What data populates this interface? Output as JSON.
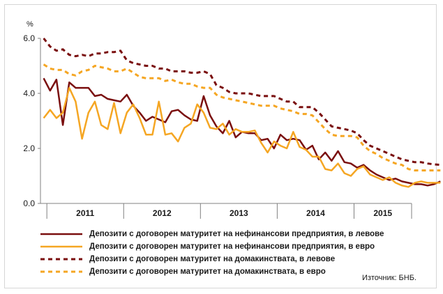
{
  "chart_data": {
    "type": "line",
    "unit_label": "%",
    "ylim": [
      0,
      6
    ],
    "y_ticks": [
      "0.0",
      "2.0",
      "4.0",
      "6.0"
    ],
    "x_start": "2010-12",
    "x_end": "2015-09",
    "x_tick_labels": [
      "2011",
      "2012",
      "2013",
      "2014",
      "2015"
    ],
    "grid": false,
    "legend_position": "bottom",
    "series": [
      {
        "name": "Депозити с договорен матуритет на нефинансови предприятия, в левове",
        "color": "#7a0e0e",
        "dash": "solid",
        "values": [
          4.55,
          4.1,
          4.5,
          2.85,
          4.4,
          4.2,
          4.2,
          4.2,
          3.9,
          3.95,
          3.8,
          3.75,
          3.7,
          3.95,
          3.55,
          3.3,
          3.0,
          3.15,
          3.05,
          2.95,
          3.35,
          3.4,
          3.2,
          3.05,
          3.0,
          3.9,
          3.2,
          2.8,
          2.55,
          3.0,
          2.4,
          2.6,
          2.55,
          2.55,
          2.3,
          2.35,
          2.0,
          2.5,
          2.3,
          2.35,
          2.3,
          1.95,
          2.1,
          1.6,
          1.85,
          1.55,
          1.9,
          1.5,
          1.45,
          1.3,
          1.4,
          1.2,
          1.05,
          0.95,
          0.85,
          0.9,
          0.8,
          0.75,
          0.7,
          0.7,
          0.65,
          0.7,
          0.8
        ]
      },
      {
        "name": "Депозити с договорен матуритет на нефинансови предприятия, в евро",
        "color": "#f5a623",
        "dash": "solid",
        "values": [
          3.1,
          3.4,
          3.1,
          3.3,
          4.2,
          3.7,
          2.35,
          3.3,
          3.7,
          2.85,
          2.7,
          3.65,
          2.55,
          3.3,
          3.6,
          3.1,
          2.5,
          2.5,
          3.7,
          2.5,
          2.55,
          2.25,
          2.75,
          2.9,
          3.6,
          3.3,
          2.75,
          2.7,
          2.9,
          2.5,
          2.7,
          2.6,
          2.6,
          2.65,
          2.2,
          1.85,
          2.25,
          2.1,
          2.0,
          2.6,
          2.05,
          1.95,
          1.7,
          1.7,
          1.25,
          1.2,
          1.45,
          1.1,
          1.0,
          1.25,
          1.35,
          1.05,
          0.95,
          0.85,
          0.95,
          0.75,
          0.65,
          0.6,
          0.75,
          0.8,
          0.75,
          0.75,
          0.75
        ]
      },
      {
        "name": "Депозити с договорен матуритет на домакинствата, в левове",
        "color": "#7a0e0e",
        "dash": "dash",
        "values": [
          6.0,
          5.7,
          5.55,
          5.6,
          5.4,
          5.35,
          5.4,
          5.35,
          5.45,
          5.45,
          5.5,
          5.5,
          5.55,
          5.2,
          5.1,
          5.05,
          5.0,
          5.0,
          4.9,
          4.9,
          4.8,
          4.8,
          4.8,
          4.75,
          4.75,
          4.8,
          4.7,
          4.3,
          4.2,
          4.05,
          4.0,
          4.0,
          4.0,
          3.95,
          3.9,
          3.9,
          3.9,
          3.8,
          3.7,
          3.7,
          3.5,
          3.5,
          3.5,
          3.3,
          3.05,
          2.8,
          2.75,
          2.7,
          2.65,
          2.55,
          2.3,
          2.1,
          2.0,
          1.9,
          1.8,
          1.7,
          1.6,
          1.55,
          1.5,
          1.5,
          1.45,
          1.42,
          1.4
        ]
      },
      {
        "name": "Депозити с договорен матуритет на домакинствата, в евро",
        "color": "#f5a623",
        "dash": "dash",
        "values": [
          5.05,
          4.9,
          4.85,
          4.85,
          4.7,
          4.65,
          4.8,
          4.85,
          5.0,
          4.95,
          4.9,
          4.8,
          4.8,
          4.9,
          4.75,
          4.6,
          4.55,
          4.55,
          4.55,
          4.45,
          4.5,
          4.4,
          4.35,
          4.35,
          4.25,
          4.2,
          4.2,
          3.95,
          3.85,
          3.8,
          3.75,
          3.7,
          3.65,
          3.6,
          3.55,
          3.55,
          3.55,
          3.45,
          3.4,
          3.35,
          3.25,
          3.25,
          3.2,
          2.95,
          2.7,
          2.5,
          2.45,
          2.45,
          2.45,
          2.4,
          2.1,
          1.9,
          1.8,
          1.65,
          1.55,
          1.45,
          1.4,
          1.25,
          1.2,
          1.2,
          1.2,
          1.2,
          1.2
        ]
      }
    ]
  },
  "source_text": "Източник: БНБ."
}
